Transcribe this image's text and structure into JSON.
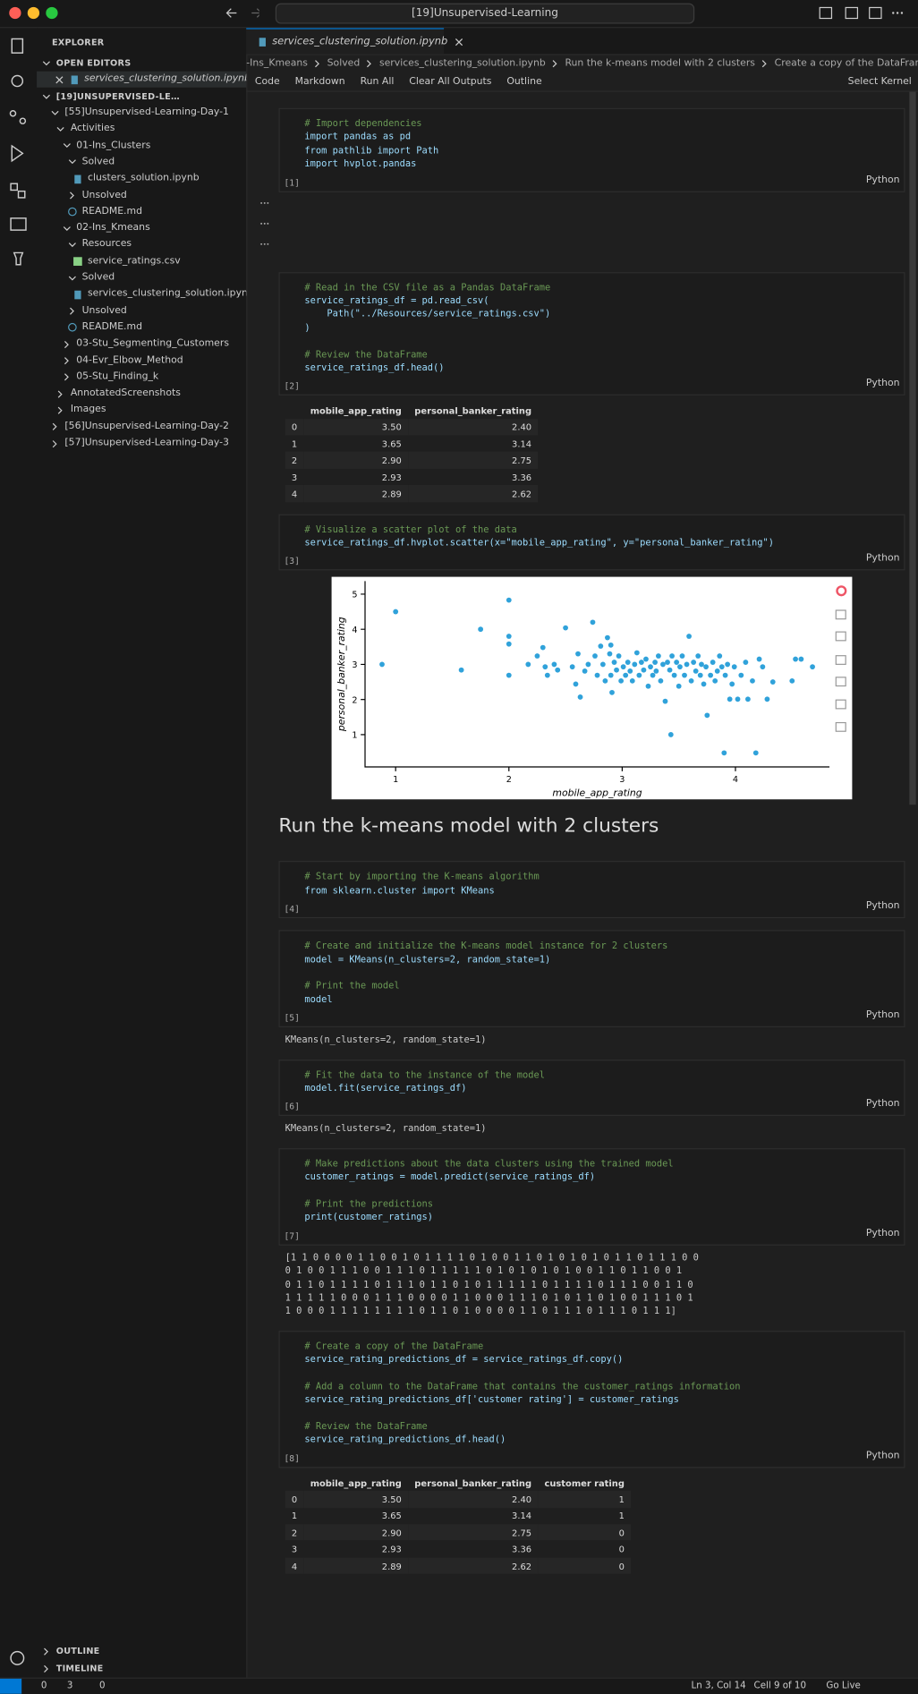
{
  "title_bar": {
    "search": "[19]Unsupervised-Learning"
  },
  "sidebar": {
    "title": "EXPLORER",
    "open_editors": "OPEN EDITORS",
    "open_files": [
      "services_clustering_solution.ipynb"
    ],
    "workspace": "[19]UNSUPERVISED-LEARNING",
    "tree": [
      {
        "label": "[55]Unsupervised-Learning-Day-1",
        "depth": 0,
        "kind": "folder",
        "open": true
      },
      {
        "label": "Activities",
        "depth": 1,
        "kind": "folder",
        "open": true
      },
      {
        "label": "01-Ins_Clusters",
        "depth": 2,
        "kind": "folder",
        "open": true
      },
      {
        "label": "Solved",
        "depth": 3,
        "kind": "folder",
        "open": true
      },
      {
        "label": "clusters_solution.ipynb",
        "depth": 4,
        "kind": "notebook"
      },
      {
        "label": "Unsolved",
        "depth": 3,
        "kind": "folder",
        "open": false
      },
      {
        "label": "README.md",
        "depth": 3,
        "kind": "readme"
      },
      {
        "label": "02-Ins_Kmeans",
        "depth": 2,
        "kind": "folder",
        "open": true
      },
      {
        "label": "Resources",
        "depth": 3,
        "kind": "folder",
        "open": true
      },
      {
        "label": "service_ratings.csv",
        "depth": 4,
        "kind": "csv"
      },
      {
        "label": "Solved",
        "depth": 3,
        "kind": "folder",
        "open": true
      },
      {
        "label": "services_clustering_solution.ipynb",
        "depth": 4,
        "kind": "notebook"
      },
      {
        "label": "Unsolved",
        "depth": 3,
        "kind": "folder",
        "open": false
      },
      {
        "label": "README.md",
        "depth": 3,
        "kind": "readme"
      },
      {
        "label": "03-Stu_Segmenting_Customers",
        "depth": 2,
        "kind": "folder",
        "open": false
      },
      {
        "label": "04-Evr_Elbow_Method",
        "depth": 2,
        "kind": "folder",
        "open": false
      },
      {
        "label": "05-Stu_Finding_k",
        "depth": 2,
        "kind": "folder",
        "open": false
      },
      {
        "label": "AnnotatedScreenshots",
        "depth": 1,
        "kind": "folder",
        "open": false
      },
      {
        "label": "Images",
        "depth": 1,
        "kind": "folder",
        "open": false
      },
      {
        "label": "[56]Unsupervised-Learning-Day-2",
        "depth": 0,
        "kind": "folder",
        "open": false
      },
      {
        "label": "[57]Unsupervised-Learning-Day-3",
        "depth": 0,
        "kind": "folder",
        "open": false
      }
    ],
    "outline": "OUTLINE",
    "timeline": "TIMELINE"
  },
  "editor": {
    "tab": "services_clustering_solution.ipynb",
    "breadcrumbs": [
      "-Ins_Kmeans",
      "Solved",
      "services_clustering_solution.ipynb",
      "Run the k-means model with 2 clusters",
      "Create a copy of the DataFrame"
    ],
    "toolbar": [
      "Code",
      "Markdown",
      "Run All",
      "Clear All Outputs",
      "Outline"
    ],
    "kernel": "Select Kernel"
  },
  "notebook": {
    "cells": [
      {
        "type": "code",
        "exec": "[1]",
        "language": "Python",
        "lines": [
          "# Import dependencies",
          "import pandas as pd",
          "from pathlib import Path",
          "import hvplot.pandas"
        ],
        "outputs": [
          {
            "type": "collapsed",
            "rows": 3
          }
        ]
      },
      {
        "type": "code",
        "exec": "[2]",
        "language": "Python",
        "lines": [
          "# Read in the CSV file as a Pandas DataFrame",
          "service_ratings_df = pd.read_csv(",
          "    Path(\"../Resources/service_ratings.csv\")",
          ")",
          null,
          "# Review the DataFrame",
          "service_ratings_df.head()"
        ],
        "outputs": [
          {
            "type": "table",
            "columns": [
              "mobile_app_rating",
              "personal_banker_rating"
            ],
            "rows": [
              [
                "0",
                "3.50",
                "2.40"
              ],
              [
                "1",
                "3.65",
                "3.14"
              ],
              [
                "2",
                "2.90",
                "2.75"
              ],
              [
                "3",
                "2.93",
                "3.36"
              ],
              [
                "4",
                "2.89",
                "2.62"
              ]
            ]
          }
        ]
      },
      {
        "type": "code",
        "exec": "[3]",
        "language": "Python",
        "lines": [
          "# Visualize a scatter plot of the data",
          "service_ratings_df.hvplot.scatter(x=\"mobile_app_rating\", y=\"personal_banker_rating\")"
        ],
        "outputs": [
          {
            "type": "chart"
          }
        ]
      },
      {
        "type": "markdown",
        "heading": "Run the k-means model with 2 clusters"
      },
      {
        "type": "code",
        "exec": "[4]",
        "language": "Python",
        "lines": [
          "# Start by importing the K-means algorithm",
          "from sklearn.cluster import KMeans"
        ],
        "outputs": []
      },
      {
        "type": "code",
        "exec": "[5]",
        "language": "Python",
        "lines": [
          "# Create and initialize the K-means model instance for 2 clusters",
          "model = KMeans(n_clusters=2, random_state=1)",
          null,
          "# Print the model",
          "model"
        ],
        "outputs": [
          {
            "type": "text",
            "lines": [
              "KMeans(n_clusters=2, random_state=1)"
            ]
          }
        ]
      },
      {
        "type": "code",
        "exec": "[6]",
        "language": "Python",
        "lines": [
          "# Fit the data to the instance of the model",
          "model.fit(service_ratings_df)"
        ],
        "outputs": [
          {
            "type": "text",
            "lines": [
              "KMeans(n_clusters=2, random_state=1)"
            ]
          }
        ]
      },
      {
        "type": "code",
        "exec": "[7]",
        "language": "Python",
        "lines": [
          "# Make predictions about the data clusters using the trained model",
          "customer_ratings = model.predict(service_ratings_df)",
          null,
          "# Print the predictions",
          "print(customer_ratings)"
        ],
        "outputs": [
          {
            "type": "text",
            "lines": [
              "[1 1 0 0 0 0 1 1 0 0 1 0 1 1 1 1 0 1 0 0 1 1 0 1 0 1 0 1 0 1 1 0 1 1 1 0 0",
              "0 1 0 0 1 1 1 0 0 1 1 1 0 1 1 1 1 1 0 1 0 1 0 1 0 1 0 0 1 1 0 1 1 0 0 1",
              "0 1 1 0 1 1 1 1 0 1 1 1 0 1 1 0 1 0 1 1 1 1 1 0 1 1 1 1 0 1 1 1 0 0 1 1 0",
              "1 1 1 1 1 0 0 0 1 1 1 0 0 0 0 1 1 0 0 0 1 1 1 0 1 0 1 1 0 1 0 0 1 1 1 0 1",
              "1 0 0 0 1 1 1 1 1 1 1 1 0 1 1 0 1 0 0 0 0 1 1 0 1 1 1 0 1 1 1 0 1 1 1]"
            ]
          }
        ]
      },
      {
        "type": "code",
        "exec": "[8]",
        "language": "Python",
        "lines": [
          "# Create a copy of the DataFrame",
          "service_rating_predictions_df = service_ratings_df.copy()",
          null,
          "# Add a column to the DataFrame that contains the customer_ratings information",
          "service_rating_predictions_df['customer rating'] = customer_ratings",
          null,
          "# Review the DataFrame",
          "service_rating_predictions_df.head()"
        ],
        "outputs": [
          {
            "type": "table",
            "columns": [
              "mobile_app_rating",
              "personal_banker_rating",
              "customer rating"
            ],
            "rows": [
              [
                "0",
                "3.50",
                "2.40",
                "1"
              ],
              [
                "1",
                "3.65",
                "3.14",
                "1"
              ],
              [
                "2",
                "2.90",
                "2.75",
                "0"
              ],
              [
                "3",
                "2.93",
                "3.36",
                "0"
              ],
              [
                "4",
                "2.89",
                "2.62",
                "0"
              ]
            ]
          }
        ]
      }
    ]
  },
  "chart_data": {
    "type": "scatter",
    "xlabel": "mobile_app_rating",
    "ylabel": "personal_banker_rating",
    "color": "#30a2da",
    "xlim": [
      0.73,
      4.83
    ],
    "ylim": [
      0.08,
      5.37
    ],
    "xticks": [
      1,
      2,
      3,
      4
    ],
    "yticks": [
      1,
      2,
      3,
      4,
      5
    ],
    "x": [
      0.88,
      1.0,
      1.58,
      1.75,
      2.0,
      2.0,
      2.0,
      2.0,
      2.17,
      2.25,
      2.3,
      2.32,
      2.34,
      2.4,
      2.43,
      2.5,
      2.56,
      2.59,
      2.61,
      2.63,
      2.67,
      2.7,
      2.74,
      2.76,
      2.78,
      2.81,
      2.83,
      2.85,
      2.87,
      2.89,
      2.9,
      2.9,
      2.91,
      2.93,
      2.95,
      2.97,
      2.99,
      3.01,
      3.03,
      3.05,
      3.07,
      3.09,
      3.11,
      3.13,
      3.15,
      3.17,
      3.19,
      3.21,
      3.23,
      3.25,
      3.27,
      3.29,
      3.3,
      3.32,
      3.34,
      3.36,
      3.38,
      3.4,
      3.42,
      3.43,
      3.44,
      3.46,
      3.48,
      3.5,
      3.51,
      3.53,
      3.55,
      3.57,
      3.59,
      3.61,
      3.63,
      3.65,
      3.67,
      3.69,
      3.7,
      3.72,
      3.74,
      3.75,
      3.78,
      3.8,
      3.82,
      3.84,
      3.86,
      3.88,
      3.9,
      3.91,
      3.93,
      3.95,
      3.97,
      3.99,
      4.02,
      4.05,
      4.09,
      4.11,
      4.15,
      4.18,
      4.21,
      4.24,
      4.28,
      4.33,
      4.5,
      4.53,
      4.58,
      4.68
    ],
    "values": [
      3.0,
      4.5,
      2.84,
      4.0,
      4.83,
      3.8,
      3.58,
      2.69,
      3.0,
      3.24,
      3.48,
      2.93,
      2.69,
      3.0,
      2.84,
      4.04,
      2.93,
      2.44,
      3.3,
      2.07,
      2.81,
      3.0,
      4.2,
      3.24,
      2.69,
      3.52,
      3.0,
      2.53,
      3.76,
      3.3,
      2.69,
      3.55,
      2.2,
      3.06,
      2.84,
      3.24,
      2.53,
      2.93,
      2.69,
      3.06,
      2.81,
      2.53,
      3.0,
      3.33,
      2.69,
      3.06,
      2.84,
      3.15,
      2.38,
      2.93,
      2.69,
      3.06,
      2.81,
      3.24,
      2.53,
      3.0,
      1.95,
      3.06,
      2.84,
      1.0,
      3.24,
      2.69,
      3.06,
      2.38,
      2.93,
      3.24,
      2.69,
      3.0,
      3.8,
      2.53,
      3.06,
      2.81,
      3.24,
      2.69,
      3.0,
      2.44,
      2.93,
      1.55,
      2.69,
      3.06,
      2.53,
      2.81,
      3.24,
      2.93,
      0.48,
      2.69,
      3.0,
      2.01,
      2.44,
      2.93,
      2.01,
      2.69,
      3.06,
      2.01,
      2.53,
      0.48,
      3.15,
      2.93,
      2.01,
      2.5,
      2.53,
      3.15,
      3.15,
      2.93
    ]
  },
  "status_bar": {
    "errors": "0",
    "warnings": "3",
    "ports": "0",
    "position": "Ln 3, Col 14",
    "cell": "Cell 9 of 10",
    "live": "Go Live"
  }
}
